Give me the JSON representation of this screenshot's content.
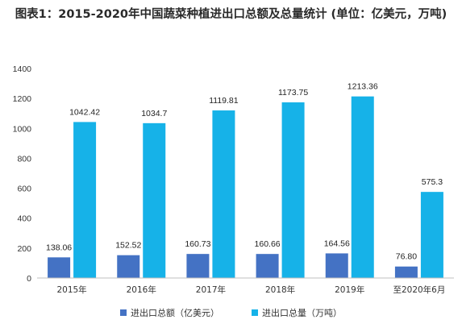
{
  "title": "图表1：2015-2020年中国蔬菜种植进出口总额及总量统计 (单位：亿美元，万吨)",
  "chart_data": {
    "type": "bar",
    "categories": [
      "2015年",
      "2016年",
      "2017年",
      "2018年",
      "2019年",
      "至2020年6月"
    ],
    "series": [
      {
        "name": "进出口总额（亿美元）",
        "color": "#4472c4",
        "values": [
          138.06,
          152.52,
          160.73,
          160.66,
          164.56,
          76.8
        ],
        "labels": [
          "138.06",
          "152.52",
          "160.73",
          "160.66",
          "164.56",
          "76.80"
        ]
      },
      {
        "name": "进出口总量（万吨）",
        "color": "#16b2e8",
        "values": [
          1042.42,
          1034.7,
          1119.81,
          1173.75,
          1213.36,
          575.3
        ],
        "labels": [
          "1042.42",
          "1034.7",
          "1119.81",
          "1173.75",
          "1213.36",
          "575.3"
        ]
      }
    ],
    "ylim": [
      0,
      1400
    ],
    "yticks": [
      "0",
      "200",
      "400",
      "600",
      "800",
      "1000",
      "1200",
      "1400"
    ],
    "grid": false,
    "legend_position": "bottom"
  }
}
